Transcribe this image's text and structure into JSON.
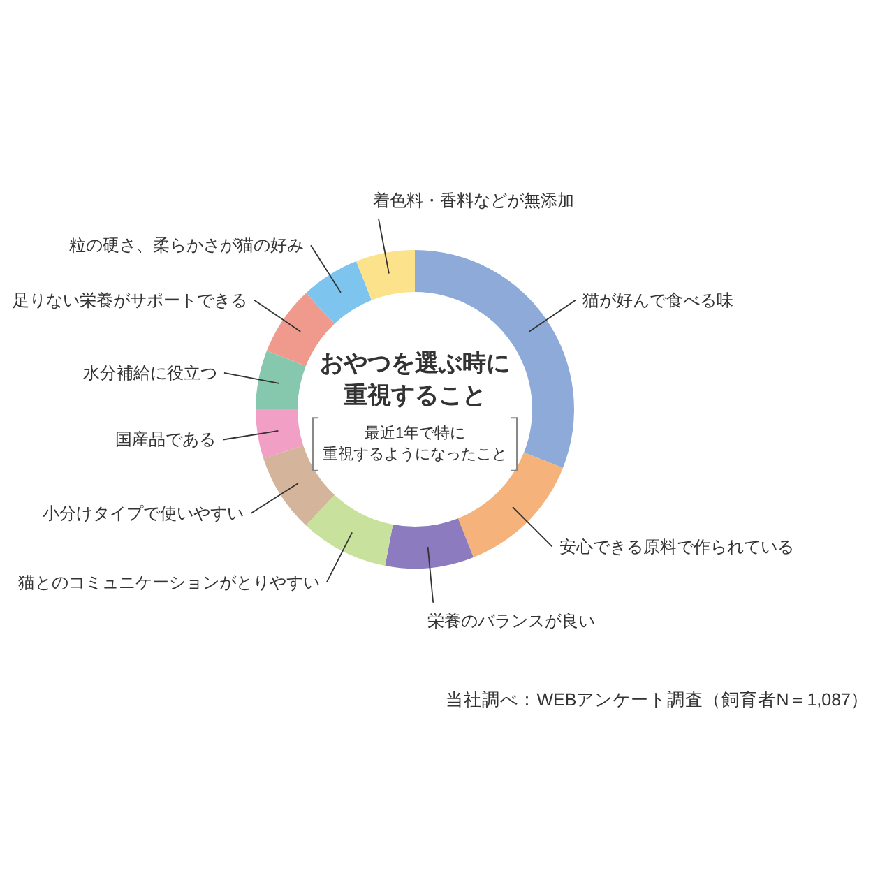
{
  "chart_data": {
    "type": "donut",
    "title": "おやつを選ぶ時に重視すること",
    "subtitle": "最近1年で特に重視するようになったこと",
    "categories": [
      "猫が好んで食べる味",
      "安心できる原料で作られている",
      "栄養のバランスが良い",
      "猫とのコミュニケーションがとりやすい",
      "小分けタイプで使いやすい",
      "国産品である",
      "水分補給に役立つ",
      "足りない栄養がサポートできる",
      "粒の硬さ、柔らかさが猫の好み",
      "着色料・香料などが無添加"
    ],
    "values": [
      31,
      13,
      9,
      9,
      8,
      5,
      6,
      7,
      6,
      6
    ],
    "colors": [
      "#8eaad8",
      "#f5b27a",
      "#8c7bbf",
      "#c8e19c",
      "#d4b49a",
      "#f29fc5",
      "#86c8ae",
      "#ef9a8c",
      "#7dc5ee",
      "#fde28c"
    ],
    "annotations": [
      "当社調べ：WEBアンケート調査（飼育者N＝1,087）"
    ]
  }
}
